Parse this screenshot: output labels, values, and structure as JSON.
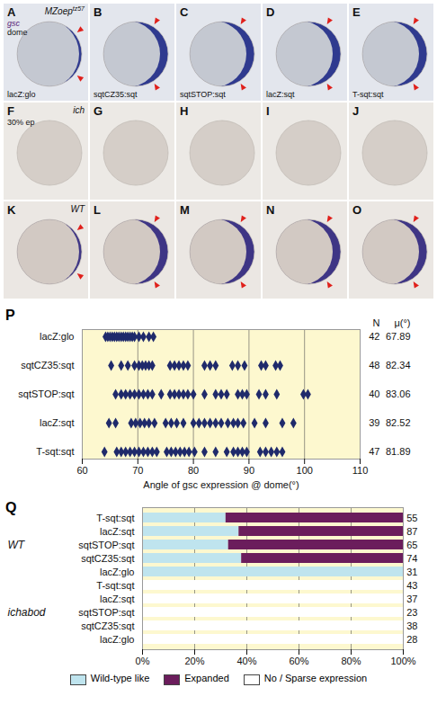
{
  "embryo_panels": {
    "columns": [
      "lacZ:glo",
      "sqtCZ35:sqt",
      "sqtSTOP:sqt",
      "lacZ:sqt",
      "T-sqt:sqt"
    ],
    "rows": [
      {
        "letters": [
          "A",
          "B",
          "C",
          "D",
          "E"
        ],
        "genotype": "MZoep",
        "genotype_sup": "tz57",
        "stage_labels": [
          "gsc",
          "dome"
        ],
        "stained": true
      },
      {
        "letters": [
          "F",
          "G",
          "H",
          "I",
          "J"
        ],
        "genotype": "ich",
        "stage_labels": [
          "30% ep"
        ],
        "stained": false
      },
      {
        "letters": [
          "K",
          "L",
          "M",
          "N",
          "O"
        ],
        "genotype": "WT",
        "stage_labels": [],
        "stained": true
      }
    ]
  },
  "chart_data": [
    {
      "type": "scatter",
      "panel_label": "P",
      "categories": [
        "lacZ:glo",
        "sqtCZ35:sqt",
        "sqtSTOP:sqt",
        "lacZ:sqt",
        "T-sqt:sqt"
      ],
      "values": [
        [
          64.2,
          64.6,
          65.0,
          65.4,
          65.8,
          66.2,
          66.6,
          67.0,
          67.4,
          67.8,
          68.2,
          68.6,
          69.0,
          69.4,
          70.2,
          71.0,
          72.0,
          72.8
        ],
        [
          65.2,
          67.0,
          68.2,
          69.4,
          70.2,
          70.8,
          71.4,
          72.0,
          72.6,
          75.8,
          76.6,
          77.4,
          78.2,
          79.0,
          82.0,
          83.0,
          84.0,
          87.0,
          88.0,
          89.2,
          92.2,
          93.0,
          94.8,
          95.6
        ],
        [
          66.0,
          67.0,
          67.8,
          68.6,
          69.4,
          70.2,
          71.0,
          71.8,
          72.6,
          74.2,
          75.8,
          76.6,
          77.4,
          78.2,
          79.0,
          80.0,
          82.0,
          84.0,
          85.0,
          86.0,
          88.0,
          88.8,
          89.6,
          91.8,
          93.0,
          95.0,
          99.8,
          100.6
        ],
        [
          64.8,
          66.0,
          68.8,
          69.6,
          70.4,
          71.2,
          72.0,
          73.0,
          75.0,
          76.0,
          77.0,
          78.2,
          80.0,
          81.0,
          82.0,
          83.0,
          84.0,
          85.0,
          86.2,
          87.2,
          88.0,
          89.0,
          91.0,
          93.0,
          96.0,
          98.0
        ],
        [
          64.0,
          66.2,
          67.0,
          67.8,
          68.6,
          69.4,
          70.2,
          71.0,
          71.8,
          72.6,
          73.4,
          75.2,
          76.0,
          76.8,
          77.6,
          78.4,
          79.2,
          80.2,
          82.0,
          84.0,
          86.0,
          87.2,
          88.0,
          88.8,
          89.6,
          92.0,
          93.0,
          94.0,
          95.0,
          96.0
        ]
      ],
      "column_heads": [
        "N",
        "μ(°)"
      ],
      "n": [
        42,
        48,
        40,
        39,
        47
      ],
      "mean": [
        67.89,
        82.34,
        83.06,
        82.52,
        81.89
      ],
      "xlabel": "Angle of gsc expression @ dome(°)",
      "xlim": [
        60,
        110
      ],
      "xticks": [
        60,
        70,
        80,
        90,
        100,
        110
      ],
      "grid": true,
      "marker": "diamond",
      "color": "#1f2a6b"
    },
    {
      "type": "bar",
      "panel_label": "Q",
      "orientation": "horizontal",
      "stacked": true,
      "categories": [
        "T-sqt:sqt",
        "lacZ:sqt",
        "sqtSTOP:sqt",
        "sqtCZ35:sqt",
        "lacZ:glo",
        "T-sqt:sqt",
        "lacZ:sqt",
        "sqtSTOP:sqt",
        "sqtCZ35:sqt",
        "lacZ:glo"
      ],
      "groups": [
        "WT",
        "WT",
        "WT",
        "WT",
        "WT",
        "ichabod",
        "ichabod",
        "ichabod",
        "ichabod",
        "ichabod"
      ],
      "series": [
        {
          "name": "Wild-type like",
          "color": "#bfe4ee",
          "values": [
            32,
            37,
            33,
            38,
            100,
            0,
            0,
            0,
            0,
            0
          ]
        },
        {
          "name": "Expanded",
          "color": "#6b1d5c",
          "values": [
            68,
            63,
            67,
            62,
            0,
            0,
            0,
            0,
            0,
            0
          ]
        },
        {
          "name": "No / Sparse expression",
          "color": "#ffffff",
          "values": [
            0,
            0,
            0,
            0,
            0,
            100,
            100,
            100,
            100,
            100
          ]
        }
      ],
      "n": [
        55,
        87,
        65,
        74,
        31,
        43,
        37,
        23,
        38,
        28
      ],
      "xlim": [
        0,
        100
      ],
      "xticks": [
        {
          "value": 0,
          "label": "0%"
        },
        {
          "value": 20,
          "label": "20%"
        },
        {
          "value": 40,
          "label": "40%"
        },
        {
          "value": 60,
          "label": "60%"
        },
        {
          "value": 80,
          "label": "80%"
        },
        {
          "value": 100,
          "label": "100%"
        }
      ],
      "grid": true,
      "legend": "bottom"
    }
  ]
}
